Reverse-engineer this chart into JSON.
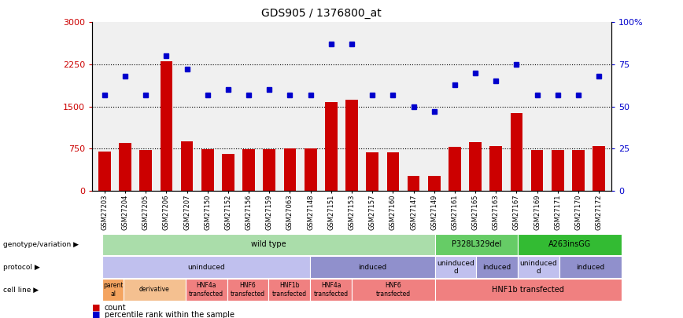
{
  "title": "GDS905 / 1376800_at",
  "samples": [
    "GSM27203",
    "GSM27204",
    "GSM27205",
    "GSM27206",
    "GSM27207",
    "GSM27150",
    "GSM27152",
    "GSM27156",
    "GSM27159",
    "GSM27063",
    "GSM27148",
    "GSM27151",
    "GSM27153",
    "GSM27157",
    "GSM27160",
    "GSM27147",
    "GSM27149",
    "GSM27161",
    "GSM27165",
    "GSM27163",
    "GSM27167",
    "GSM27169",
    "GSM27171",
    "GSM27170",
    "GSM27172"
  ],
  "counts": [
    700,
    850,
    730,
    2300,
    880,
    740,
    660,
    740,
    740,
    760,
    760,
    1580,
    1620,
    680,
    680,
    270,
    270,
    780,
    870,
    790,
    1390,
    730,
    720,
    730,
    790
  ],
  "percentiles": [
    57,
    68,
    57,
    80,
    72,
    57,
    60,
    57,
    60,
    57,
    57,
    87,
    87,
    57,
    57,
    50,
    47,
    63,
    70,
    65,
    75,
    57,
    57,
    57,
    68
  ],
  "ylim_left": [
    0,
    3000
  ],
  "ylim_right": [
    0,
    100
  ],
  "yticks_left": [
    0,
    750,
    1500,
    2250,
    3000
  ],
  "yticks_right": [
    0,
    25,
    50,
    75,
    100
  ],
  "bar_color": "#cc0000",
  "dot_color": "#0000cc",
  "bg_color": "#f0f0f0",
  "genotype_segments": [
    {
      "label": "wild type",
      "start": 0,
      "end": 16,
      "color": "#aaddaa"
    },
    {
      "label": "P328L329del",
      "start": 16,
      "end": 20,
      "color": "#66cc66"
    },
    {
      "label": "A263insGG",
      "start": 20,
      "end": 25,
      "color": "#33bb33"
    }
  ],
  "protocol_segments": [
    {
      "label": "uninduced",
      "start": 0,
      "end": 10,
      "color": "#c0c0ee"
    },
    {
      "label": "induced",
      "start": 10,
      "end": 16,
      "color": "#9090cc"
    },
    {
      "label": "uninduced\nd",
      "start": 16,
      "end": 18,
      "color": "#c0c0ee"
    },
    {
      "label": "induced",
      "start": 18,
      "end": 20,
      "color": "#9090cc"
    },
    {
      "label": "uninduced\nd",
      "start": 20,
      "end": 22,
      "color": "#c0c0ee"
    },
    {
      "label": "induced",
      "start": 22,
      "end": 25,
      "color": "#9090cc"
    }
  ],
  "cell_line_segments": [
    {
      "label": "parent\nal",
      "start": 0,
      "end": 1,
      "color": "#f4a460"
    },
    {
      "label": "derivative",
      "start": 1,
      "end": 4,
      "color": "#f4c090"
    },
    {
      "label": "HNF4a\ntransfected",
      "start": 4,
      "end": 6,
      "color": "#f08080"
    },
    {
      "label": "HNF6\ntransfected",
      "start": 6,
      "end": 8,
      "color": "#f08080"
    },
    {
      "label": "HNF1b\ntransfected",
      "start": 8,
      "end": 10,
      "color": "#f08080"
    },
    {
      "label": "HNF4a\ntransfected",
      "start": 10,
      "end": 12,
      "color": "#f08080"
    },
    {
      "label": "HNF6\ntransfected",
      "start": 12,
      "end": 16,
      "color": "#f08080"
    },
    {
      "label": "HNF1b transfected",
      "start": 16,
      "end": 25,
      "color": "#f08080"
    }
  ],
  "row_labels": [
    {
      "text": "genotype/variation ▶",
      "row": "genotype"
    },
    {
      "text": "protocol ▶",
      "row": "protocol"
    },
    {
      "text": "cell line ▶",
      "row": "cell_line"
    }
  ]
}
